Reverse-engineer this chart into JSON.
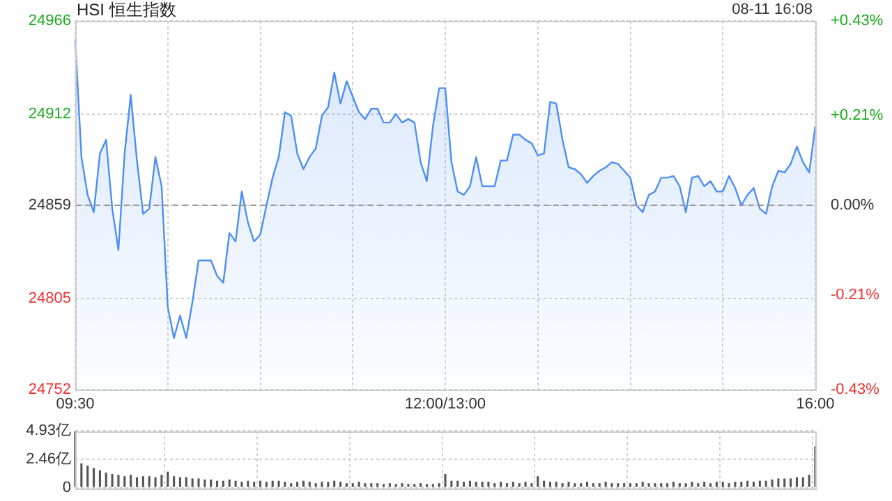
{
  "chart_data": [
    {
      "type": "area",
      "title": "HSI 恒生指数",
      "annotations": [
        "08-11 16:08"
      ],
      "categories": [
        "09:30",
        null,
        null,
        null,
        null,
        null,
        null,
        null,
        null,
        null,
        null,
        null,
        null,
        null,
        null,
        null,
        null,
        null,
        null,
        null,
        null,
        null,
        null,
        null,
        null,
        null,
        null,
        null,
        null,
        null,
        null,
        null,
        null,
        null,
        null,
        null,
        null,
        null,
        null,
        null,
        null,
        null,
        null,
        null,
        null,
        null,
        null,
        null,
        null,
        null,
        null,
        null,
        null,
        null,
        null,
        null,
        null,
        null,
        null,
        null,
        "12:00/13:00",
        null,
        null,
        null,
        null,
        null,
        null,
        null,
        null,
        null,
        null,
        null,
        null,
        null,
        null,
        null,
        null,
        null,
        null,
        null,
        null,
        null,
        null,
        null,
        null,
        null,
        null,
        null,
        null,
        null,
        null,
        null,
        null,
        null,
        null,
        null,
        null,
        null,
        null,
        null,
        null,
        null,
        null,
        null,
        null,
        null,
        null,
        null,
        null,
        null,
        null,
        null,
        null,
        null,
        null,
        null,
        null,
        null,
        null,
        null,
        "16:00"
      ],
      "series": [
        {
          "color": "#4d8ef5",
          "values": [
            24955,
            24887,
            24865,
            24855,
            24889,
            24897,
            24857,
            24833,
            24889,
            24923,
            24885,
            24854,
            24857,
            24887,
            24870,
            24800,
            24782,
            24795,
            24782,
            24803,
            24827,
            24827,
            24827,
            24818,
            24814,
            24843,
            24838,
            24867,
            24849,
            24838,
            24842,
            24859,
            24875,
            24887,
            24913,
            24911,
            24889,
            24880,
            24887,
            24892,
            24911,
            24916,
            24936,
            24918,
            24931,
            24922,
            24913,
            24909,
            24915,
            24915,
            24907,
            24907,
            24912,
            24907,
            24909,
            24907,
            24884,
            24873,
            24905,
            24927,
            24927,
            24884,
            24867,
            24865,
            24870,
            24887,
            24870,
            24870,
            24870,
            24885,
            24885,
            24900,
            24900,
            24897,
            24895,
            24888,
            24889,
            24919,
            24918,
            24897,
            24881,
            24880,
            24877,
            24872,
            24876,
            24879,
            24881,
            24884,
            24883,
            24879,
            24875,
            24859,
            24855,
            24865,
            24867,
            24875,
            24875,
            24876,
            24870,
            24855,
            24875,
            24876,
            24870,
            24873,
            24867,
            24867,
            24876,
            24869,
            24859,
            24865,
            24869,
            24857,
            24854,
            24870,
            24879,
            24878,
            24883,
            24893,
            24884,
            24878,
            24905
          ]
        }
      ],
      "ylim": [
        24752,
        24966
      ],
      "yticks": [
        24752,
        24805,
        24859,
        24912,
        24966
      ],
      "y2lim": [
        -0.43,
        0.43
      ],
      "y2ticks": [
        {
          "value": -0.43,
          "label": "-0.43%"
        },
        {
          "value": -0.21,
          "label": "-0.21%"
        },
        {
          "value": 0,
          "label": "0.00%"
        },
        {
          "value": 0.21,
          "label": "+0.21%"
        },
        {
          "value": 0.43,
          "label": "+0.43%"
        }
      ],
      "ref_lines": [
        {
          "axis": "y",
          "value": 24859,
          "line_style": "dashed"
        }
      ],
      "grid": true
    },
    {
      "type": "bar",
      "categories": [
        null,
        null,
        null,
        null,
        null,
        null,
        null,
        null,
        null,
        null,
        null,
        null,
        null,
        null,
        null,
        null,
        null,
        null,
        null,
        null,
        null,
        null,
        null,
        null,
        null,
        null,
        null,
        null,
        null,
        null,
        null,
        null,
        null,
        null,
        null,
        null,
        null,
        null,
        null,
        null,
        null,
        null,
        null,
        null,
        null,
        null,
        null,
        null,
        null,
        null,
        null,
        null,
        null,
        null,
        null,
        null,
        null,
        null,
        null,
        null,
        null,
        null,
        null,
        null,
        null,
        null,
        null,
        null,
        null,
        null,
        null,
        null,
        null,
        null,
        null,
        null,
        null,
        null,
        null,
        null,
        null,
        null,
        null,
        null,
        null,
        null,
        null,
        null,
        null,
        null,
        null,
        null,
        null,
        null,
        null,
        null,
        null,
        null,
        null,
        null,
        null,
        null,
        null,
        null,
        null,
        null,
        null,
        null,
        null,
        null,
        null,
        null,
        null,
        null,
        null,
        null,
        null,
        null,
        null,
        null,
        null
      ],
      "series": [
        {
          "color": "#555555",
          "values": [
            4.9,
            2.1,
            1.9,
            1.7,
            1.5,
            1.3,
            1.2,
            1.1,
            1.0,
            1.1,
            0.9,
            1.0,
            1.0,
            0.9,
            1.1,
            1.4,
            1.0,
            0.9,
            0.9,
            0.8,
            0.8,
            0.7,
            0.7,
            0.6,
            0.6,
            0.7,
            0.6,
            0.5,
            0.6,
            0.5,
            0.6,
            0.5,
            0.6,
            0.6,
            0.5,
            0.4,
            0.5,
            0.6,
            0.5,
            0.4,
            0.5,
            0.5,
            0.6,
            0.5,
            0.4,
            0.4,
            0.5,
            0.4,
            0.4,
            0.4,
            0.3,
            0.4,
            0.3,
            0.4,
            0.3,
            0.3,
            0.4,
            0.3,
            0.3,
            0.4,
            1.2,
            0.6,
            0.6,
            0.5,
            0.6,
            0.5,
            0.5,
            0.5,
            0.4,
            0.5,
            0.4,
            0.5,
            0.4,
            0.5,
            0.4,
            1.0,
            0.6,
            0.5,
            0.5,
            0.4,
            0.5,
            0.4,
            0.4,
            0.5,
            0.4,
            0.4,
            0.5,
            0.4,
            0.4,
            0.4,
            0.4,
            0.4,
            0.5,
            0.4,
            0.4,
            0.4,
            0.4,
            0.5,
            0.4,
            0.4,
            0.5,
            0.4,
            0.5,
            0.4,
            0.5,
            0.5,
            0.4,
            0.5,
            0.5,
            0.6,
            0.5,
            0.6,
            0.6,
            0.7,
            0.8,
            0.8,
            0.8,
            0.9,
            0.9,
            1.1,
            3.6
          ]
        }
      ],
      "ylim": [
        0,
        4.93
      ],
      "yticks": [
        0,
        {
          "value": 2.46,
          "label": "2.46亿"
        },
        {
          "value": 4.93,
          "label": "4.93亿"
        }
      ],
      "tick_labels": "y",
      "grid": true
    }
  ]
}
